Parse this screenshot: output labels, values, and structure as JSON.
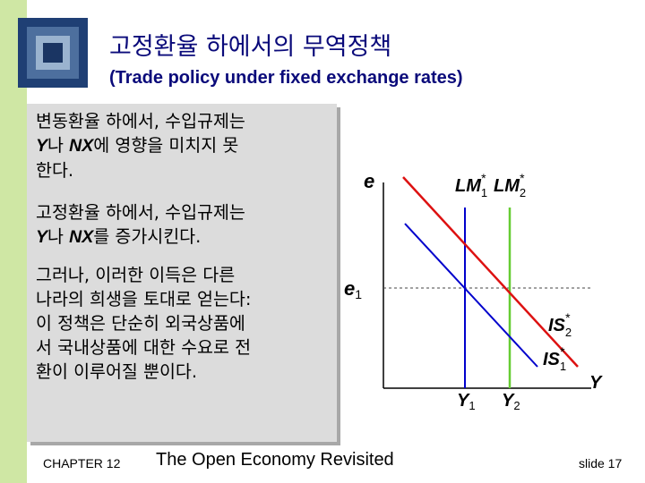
{
  "title": {
    "korean": "고정환율 하에서의 무역정책",
    "english": "(Trade policy under fixed exchange rates)"
  },
  "text_box": {
    "p1": {
      "line1": "변동환율 하에서, 수입규제는",
      "line2_y": "Y",
      "line2_a": "나 ",
      "line2_nx": "NX",
      "line2_b": "에 영향을 미치지 못",
      "line3": "한다."
    },
    "p2": {
      "line1": "고정환율 하에서, 수입규제는",
      "line2_y": "Y",
      "line2_a": "나 ",
      "line2_nx": "NX",
      "line2_b": "를 증가시킨다."
    },
    "p3": {
      "line1": "그러나, 이러한 이득은 다른",
      "line2": "나라의 희생을 토대로 얻는다:",
      "line3": "이 정책은 단순히 외국상품에",
      "line4": "서 국내상품에 대한 수요로 전",
      "line5": "환이 이루어질 뿐이다."
    }
  },
  "diagram": {
    "y_axis_label": "e",
    "x_axis_label": "Y",
    "e1_label": "e",
    "e1_sub": "1",
    "lm1": {
      "main": "LM",
      "sub": "1",
      "sup": "*"
    },
    "lm2": {
      "main": "LM",
      "sub": "2",
      "sup": "*"
    },
    "is2": {
      "main": "IS",
      "sub": "2",
      "sup": "*"
    },
    "is1": {
      "main": "IS",
      "sub": "1",
      "sup": "*"
    },
    "y1": {
      "main": "Y",
      "sub": "1"
    },
    "y2": {
      "main": "Y",
      "sub": "2"
    },
    "colors": {
      "lm1": "#0000cc",
      "lm2": "#66cc33",
      "is2": "#dd1111",
      "is1": "#0000cc",
      "axes": "#000000"
    }
  },
  "footer": {
    "chapter": "CHAPTER 12",
    "book_title": "The Open Economy Revisited",
    "slide": "slide 17"
  }
}
